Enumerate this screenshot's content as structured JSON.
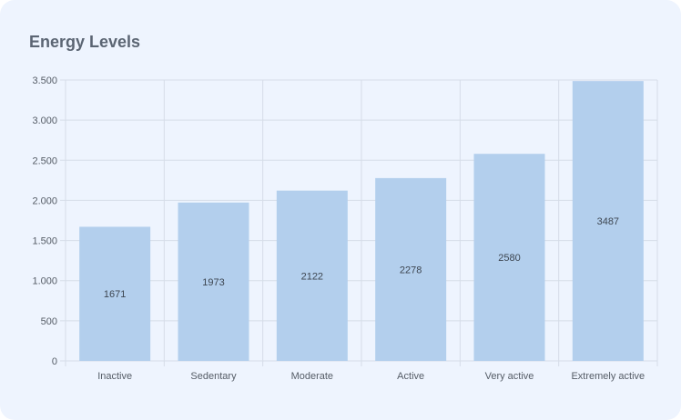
{
  "chart_data": {
    "type": "bar",
    "title": "Energy Levels",
    "categories": [
      "Inactive",
      "Sedentary",
      "Moderate",
      "Active",
      "Very active",
      "Extremely active"
    ],
    "values": [
      1671,
      1973,
      2122,
      2278,
      2580,
      3487
    ],
    "ylim": [
      0,
      3500
    ],
    "yticks": [
      0,
      500,
      1000,
      1500,
      2000,
      2500,
      3000,
      3500
    ],
    "ytick_labels": [
      "0",
      "500",
      "1.000",
      "1.500",
      "2.000",
      "2.500",
      "3.000",
      "3.500"
    ],
    "xlabel": "",
    "ylabel": "",
    "grid": true,
    "bar_color": "#b3cfed",
    "grid_color": "#d6dde8",
    "legend": "none"
  }
}
